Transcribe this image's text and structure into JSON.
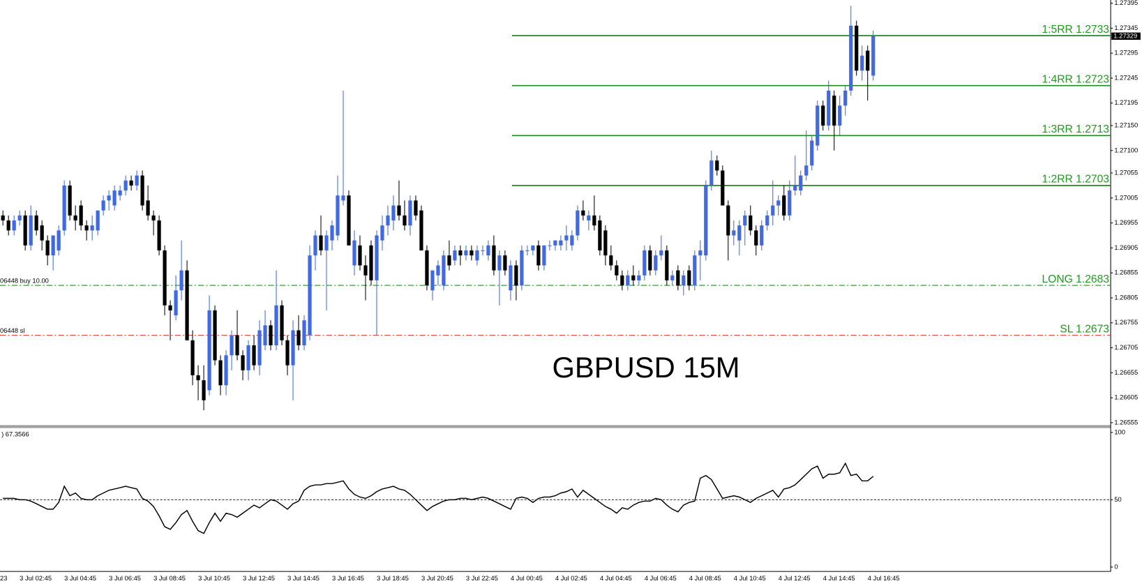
{
  "chart_data": [
    {
      "type": "candlestick",
      "annotation": "GBPUSD 15M",
      "clipped_time_label": "23",
      "categories": [
        null,
        null,
        null,
        "3 Jul 02:45",
        null,
        null,
        null,
        null,
        null,
        null,
        null,
        "3 Jul 04:45",
        null,
        null,
        null,
        null,
        null,
        null,
        null,
        "3 Jul 06:45",
        null,
        null,
        null,
        null,
        null,
        null,
        null,
        "3 Jul 08:45",
        null,
        null,
        null,
        null,
        null,
        null,
        null,
        "3 Jul 10:45",
        null,
        null,
        null,
        null,
        null,
        null,
        null,
        "3 Jul 12:45",
        null,
        null,
        null,
        null,
        null,
        null,
        null,
        "3 Jul 14:45",
        null,
        null,
        null,
        null,
        null,
        null,
        null,
        "3 Jul 16:45",
        null,
        null,
        null,
        null,
        null,
        null,
        null,
        "3 Jul 18:45",
        null,
        null,
        null,
        null,
        null,
        null,
        null,
        "3 Jul 20:45",
        null,
        null,
        null,
        null,
        null,
        null,
        null,
        "3 Jul 22:45",
        null,
        null,
        null,
        null,
        null,
        null,
        null,
        "4 Jul 00:45",
        null,
        null,
        null,
        null,
        null,
        null,
        null,
        "4 Jul 02:45",
        null,
        null,
        null,
        null,
        null,
        null,
        null,
        "4 Jul 04:45",
        null,
        null,
        null,
        null,
        null,
        null,
        null,
        "4 Jul 06:45",
        null,
        null,
        null,
        null,
        null,
        null,
        null,
        "4 Jul 08:45",
        null,
        null,
        null,
        null,
        null,
        null,
        null,
        "4 Jul 10:45",
        null,
        null,
        null,
        null,
        null,
        null,
        null,
        "4 Jul 12:45",
        null,
        null,
        null,
        null,
        null,
        null,
        null,
        "4 Jul 14:45",
        null,
        null,
        null,
        null,
        null,
        null,
        null,
        "4 Jul 16:45",
        null
      ],
      "open": [
        1.2697,
        1.2696,
        1.2694,
        1.2696,
        1.2697,
        1.2691,
        1.2697,
        1.2695,
        1.2692,
        1.2689,
        1.269,
        1.2694,
        1.2703,
        1.2697,
        1.2699,
        1.2695,
        1.2694,
        1.2694,
        1.2698,
        1.27,
        1.2699,
        1.2701,
        1.2702,
        1.2704,
        1.2703,
        1.2705,
        1.27,
        1.2697,
        1.2696,
        1.269,
        1.2679,
        1.2677,
        1.2682,
        1.2686,
        1.2672,
        1.2665,
        1.2664,
        1.2662,
        1.2678,
        1.2668,
        1.2663,
        1.2669,
        1.2673,
        1.2669,
        1.2666,
        1.2671,
        1.2667,
        1.2671,
        1.2675,
        1.2671,
        1.2679,
        1.2672,
        1.2667,
        1.2674,
        1.2671,
        1.2673,
        1.2689,
        1.2693,
        1.269,
        1.2692,
        1.2693,
        1.27,
        1.2701,
        1.2687,
        1.2691,
        1.2687,
        1.2691,
        1.2684,
        1.2692,
        1.2695,
        1.2696,
        1.2699,
        1.2697,
        1.2695,
        1.27,
        1.2698,
        1.269,
        1.2682,
        1.2685,
        1.2683,
        1.2689,
        1.2688,
        1.269,
        1.2689,
        1.269,
        1.2688,
        1.269,
        1.2689,
        1.2691,
        1.2686,
        1.2689,
        1.2682,
        1.2687,
        1.2683,
        1.269,
        1.269,
        1.2691,
        1.2687,
        1.2691,
        1.2691,
        1.2691,
        1.2692,
        1.2691,
        1.2693,
        1.2698,
        1.2696,
        1.2697,
        1.2696,
        1.2694,
        1.2689,
        1.2687,
        1.2685,
        1.2683,
        1.2685,
        1.2684,
        1.2685,
        1.269,
        1.2686,
        1.2689,
        1.269,
        1.2684,
        1.2686,
        1.2683,
        1.2686,
        1.2683,
        1.2689,
        1.2689,
        1.2703,
        1.2708,
        1.2706,
        1.2699,
        1.2693,
        1.2692,
        1.2695,
        1.2697,
        1.2694,
        1.2691,
        1.2695,
        1.2697,
        1.2699,
        1.2701,
        1.2697,
        1.2702,
        1.2702,
        1.2705,
        1.2707,
        1.2711,
        1.2719,
        1.2715,
        1.2721,
        1.2715,
        1.2719,
        1.2722,
        1.2735,
        1.2726,
        1.273,
        1.2725
      ],
      "high": [
        1.2698,
        1.2697,
        1.2697,
        1.2698,
        1.2698,
        1.2699,
        1.2698,
        1.2696,
        1.2693,
        1.2693,
        1.2695,
        1.2704,
        1.2704,
        1.2699,
        1.27,
        1.2696,
        1.2697,
        1.2698,
        1.2701,
        1.2702,
        1.2703,
        1.2703,
        1.2705,
        1.2705,
        1.2706,
        1.2706,
        1.2703,
        1.2698,
        1.2697,
        1.2691,
        1.268,
        1.2685,
        1.2692,
        1.2688,
        1.2674,
        1.2667,
        1.2667,
        1.2681,
        1.2679,
        1.2669,
        1.267,
        1.2674,
        1.2678,
        1.267,
        1.2672,
        1.2673,
        1.2676,
        1.2678,
        1.2676,
        1.2686,
        1.268,
        1.2673,
        1.2676,
        1.2677,
        1.2677,
        1.2691,
        1.2694,
        1.2697,
        1.2694,
        1.2696,
        1.2705,
        1.2722,
        1.2702,
        1.2694,
        1.2693,
        1.2689,
        1.2692,
        1.2694,
        1.2697,
        1.2699,
        1.2701,
        1.2704,
        1.27,
        1.2701,
        1.2701,
        1.2699,
        1.2691,
        1.2686,
        1.2688,
        1.269,
        1.2692,
        1.2691,
        1.2691,
        1.2691,
        1.2691,
        1.2691,
        1.2691,
        1.2692,
        1.2693,
        1.269,
        1.269,
        1.2688,
        1.2688,
        1.2691,
        1.2691,
        1.2691,
        1.2692,
        1.2691,
        1.2692,
        1.2692,
        1.2693,
        1.2695,
        1.2694,
        1.2699,
        1.27,
        1.2698,
        1.2701,
        1.2697,
        1.2695,
        1.2691,
        1.2688,
        1.2686,
        1.2686,
        1.2687,
        1.2686,
        1.2691,
        1.2691,
        1.269,
        1.2693,
        1.2691,
        1.2686,
        1.2687,
        1.2686,
        1.2687,
        1.269,
        1.2692,
        1.2704,
        1.271,
        1.2709,
        1.2707,
        1.27,
        1.2696,
        1.2696,
        1.2698,
        1.2699,
        1.2695,
        1.2696,
        1.2698,
        1.2704,
        1.2701,
        1.2703,
        1.2704,
        1.2709,
        1.2706,
        1.2714,
        1.2713,
        1.272,
        1.272,
        1.2724,
        1.2722,
        1.2721,
        1.2723,
        1.2739,
        1.2736,
        1.2731,
        1.2731,
        1.2734
      ],
      "low": [
        1.2695,
        1.2693,
        1.2693,
        1.2695,
        1.269,
        1.269,
        1.2693,
        1.269,
        1.2687,
        1.2686,
        1.2689,
        1.2693,
        1.2696,
        1.2694,
        1.2694,
        1.2692,
        1.2692,
        1.2693,
        1.2697,
        1.2698,
        1.2698,
        1.27,
        1.2701,
        1.2702,
        1.2702,
        1.2698,
        1.2696,
        1.2693,
        1.2689,
        1.2677,
        1.2672,
        1.2676,
        1.268,
        1.2672,
        1.2663,
        1.266,
        1.2658,
        1.2661,
        1.2667,
        1.2661,
        1.2661,
        1.2666,
        1.2668,
        1.2664,
        1.2664,
        1.2666,
        1.2665,
        1.267,
        1.267,
        1.267,
        1.2671,
        1.2665,
        1.266,
        1.267,
        1.267,
        1.2672,
        1.2686,
        1.2689,
        1.2678,
        1.269,
        1.2692,
        1.2699,
        1.2691,
        1.2685,
        1.2686,
        1.268,
        1.2683,
        1.2673,
        1.269,
        1.2693,
        1.2694,
        1.2696,
        1.2694,
        1.2693,
        1.2696,
        1.269,
        1.2682,
        1.268,
        1.2683,
        1.2682,
        1.2686,
        1.2687,
        1.2687,
        1.2688,
        1.2688,
        1.2687,
        1.2689,
        1.2688,
        1.2685,
        1.2679,
        1.2685,
        1.268,
        1.268,
        1.2682,
        1.2689,
        1.2689,
        1.2686,
        1.2686,
        1.269,
        1.269,
        1.269,
        1.269,
        1.269,
        1.2692,
        1.2696,
        1.2694,
        1.2694,
        1.2689,
        1.2687,
        1.2686,
        1.2684,
        1.2682,
        1.2682,
        1.2683,
        1.2683,
        1.2684,
        1.2685,
        1.2685,
        1.2688,
        1.2683,
        1.2683,
        1.2682,
        1.2681,
        1.2682,
        1.2682,
        1.2684,
        1.2688,
        1.2702,
        1.2705,
        1.2699,
        1.2688,
        1.2691,
        1.2689,
        1.2691,
        1.2693,
        1.2689,
        1.269,
        1.2694,
        1.2695,
        1.2697,
        1.2696,
        1.2696,
        1.2701,
        1.2701,
        1.2704,
        1.2706,
        1.271,
        1.2714,
        1.2714,
        1.271,
        1.2713,
        1.2717,
        1.2721,
        1.2725,
        1.2724,
        1.272,
        1.2724
      ],
      "close": [
        1.2696,
        1.2694,
        1.2696,
        1.2697,
        1.2691,
        1.2697,
        1.2694,
        1.2692,
        1.2689,
        1.2693,
        1.2694,
        1.2703,
        1.2697,
        1.2696,
        1.2695,
        1.2694,
        1.2695,
        1.2698,
        1.27,
        1.2701,
        1.2702,
        1.2702,
        1.2704,
        1.2703,
        1.2705,
        1.2699,
        1.2697,
        1.2696,
        1.269,
        1.2679,
        1.2678,
        1.2682,
        1.2686,
        1.2672,
        1.2665,
        1.2664,
        1.266,
        1.2678,
        1.2668,
        1.2663,
        1.2669,
        1.2673,
        1.2669,
        1.2666,
        1.2671,
        1.2667,
        1.2674,
        1.2675,
        1.2671,
        1.2679,
        1.2672,
        1.2667,
        1.2674,
        1.2671,
        1.2676,
        1.2689,
        1.2693,
        1.269,
        1.2693,
        1.2695,
        1.2701,
        1.2701,
        1.2691,
        1.2692,
        1.2687,
        1.2685,
        1.2684,
        1.2693,
        1.2695,
        1.2697,
        1.2699,
        1.2697,
        1.2695,
        1.27,
        1.2697,
        1.269,
        1.2683,
        1.2686,
        1.2687,
        1.2689,
        1.2687,
        1.269,
        1.2689,
        1.269,
        1.2689,
        1.269,
        1.269,
        1.2691,
        1.2686,
        1.2689,
        1.2686,
        1.2687,
        1.2683,
        1.269,
        1.269,
        1.2691,
        1.2687,
        1.2691,
        1.2691,
        1.2692,
        1.2692,
        1.2693,
        1.2693,
        1.2698,
        1.2697,
        1.2697,
        1.2695,
        1.269,
        1.2689,
        1.2687,
        1.2685,
        1.2683,
        1.2685,
        1.2684,
        1.2685,
        1.269,
        1.2686,
        1.2689,
        1.269,
        1.2684,
        1.2685,
        1.2683,
        1.2685,
        1.2683,
        1.2689,
        1.269,
        1.2703,
        1.2708,
        1.2706,
        1.2699,
        1.2693,
        1.2694,
        1.2695,
        1.2697,
        1.2694,
        1.2691,
        1.2695,
        1.2697,
        1.2699,
        1.27,
        1.2697,
        1.2702,
        1.2703,
        1.2705,
        1.2707,
        1.2712,
        1.2719,
        1.2715,
        1.2722,
        1.2715,
        1.2719,
        1.2722,
        1.2735,
        1.2726,
        1.2729,
        1.2726,
        1.27329
      ],
      "up_color": "#4169e1",
      "down_color": "#000000",
      "ylim": [
        1.26555,
        1.27395
      ],
      "yticks": [
        1.27395,
        1.27345,
        1.27295,
        1.27245,
        1.27195,
        {
          "value": 1.2715,
          "label": "1.27150"
        },
        {
          "value": 1.271,
          "label": "1.27100"
        },
        1.27055,
        1.27005,
        1.26955,
        1.26905,
        1.26855,
        1.26805,
        1.26755,
        1.26705,
        1.26655,
        1.26605,
        1.26555
      ],
      "current_price": 1.27329,
      "levels": [
        {
          "label": "1:5RR 1.2733",
          "value": 1.2733,
          "color": "#1e8c1e",
          "style": "solid"
        },
        {
          "label": "1:4RR 1.2723",
          "value": 1.2723,
          "color": "#1e8c1e",
          "style": "solid"
        },
        {
          "label": "1:3RR 1.2713",
          "value": 1.2713,
          "color": "#1e8c1e",
          "style": "solid"
        },
        {
          "label": "1:2RR 1.2703",
          "value": 1.2703,
          "color": "#1e8c1e",
          "style": "solid"
        },
        {
          "label": "LONG 1.2683",
          "value": 1.2683,
          "color": "#1e8c1e",
          "style": "dashdot",
          "order_label": "06448 buy 10.00"
        },
        {
          "label": "SL 1.2673",
          "value": 1.2673,
          "color": "#e0301e",
          "style": "dashdot",
          "order_label": "06448 sl"
        }
      ]
    },
    {
      "type": "line",
      "title": ") 67.3566",
      "color": "#000000",
      "values": [
        51,
        51,
        51,
        50,
        50,
        49,
        47,
        45,
        43,
        43,
        48,
        60,
        53,
        55,
        51,
        50,
        50,
        53,
        55,
        57,
        58,
        59,
        60,
        59,
        58,
        51,
        49,
        45,
        38,
        30,
        28,
        33,
        39,
        42,
        34,
        27,
        25,
        33,
        40,
        34,
        40,
        39,
        37,
        40,
        43,
        46,
        44,
        47,
        50,
        49,
        46,
        43,
        47,
        49,
        57,
        60,
        61,
        61,
        62,
        62,
        63,
        64,
        58,
        54,
        52,
        51,
        53,
        56,
        58,
        59,
        60,
        58,
        57,
        54,
        50,
        46,
        42,
        45,
        47,
        49,
        50,
        50,
        51,
        51,
        50,
        51,
        52,
        51,
        49,
        47,
        45,
        43,
        51,
        52,
        51,
        48,
        51,
        52,
        52,
        53,
        55,
        56,
        58,
        52,
        57,
        54,
        51,
        48,
        45,
        43,
        40,
        44,
        43,
        46,
        48,
        49,
        49,
        51,
        50,
        46,
        43,
        41,
        46,
        48,
        49,
        66,
        68,
        65,
        58,
        51,
        52,
        53,
        52,
        50,
        48,
        51,
        53,
        55,
        57,
        52,
        58,
        59,
        61,
        65,
        69,
        73,
        75,
        66,
        69,
        69,
        70,
        77,
        68,
        69,
        64,
        64,
        67.3566
      ],
      "ylim": [
        0,
        100
      ],
      "yticks": [
        0,
        50,
        100
      ],
      "level": 50
    }
  ]
}
